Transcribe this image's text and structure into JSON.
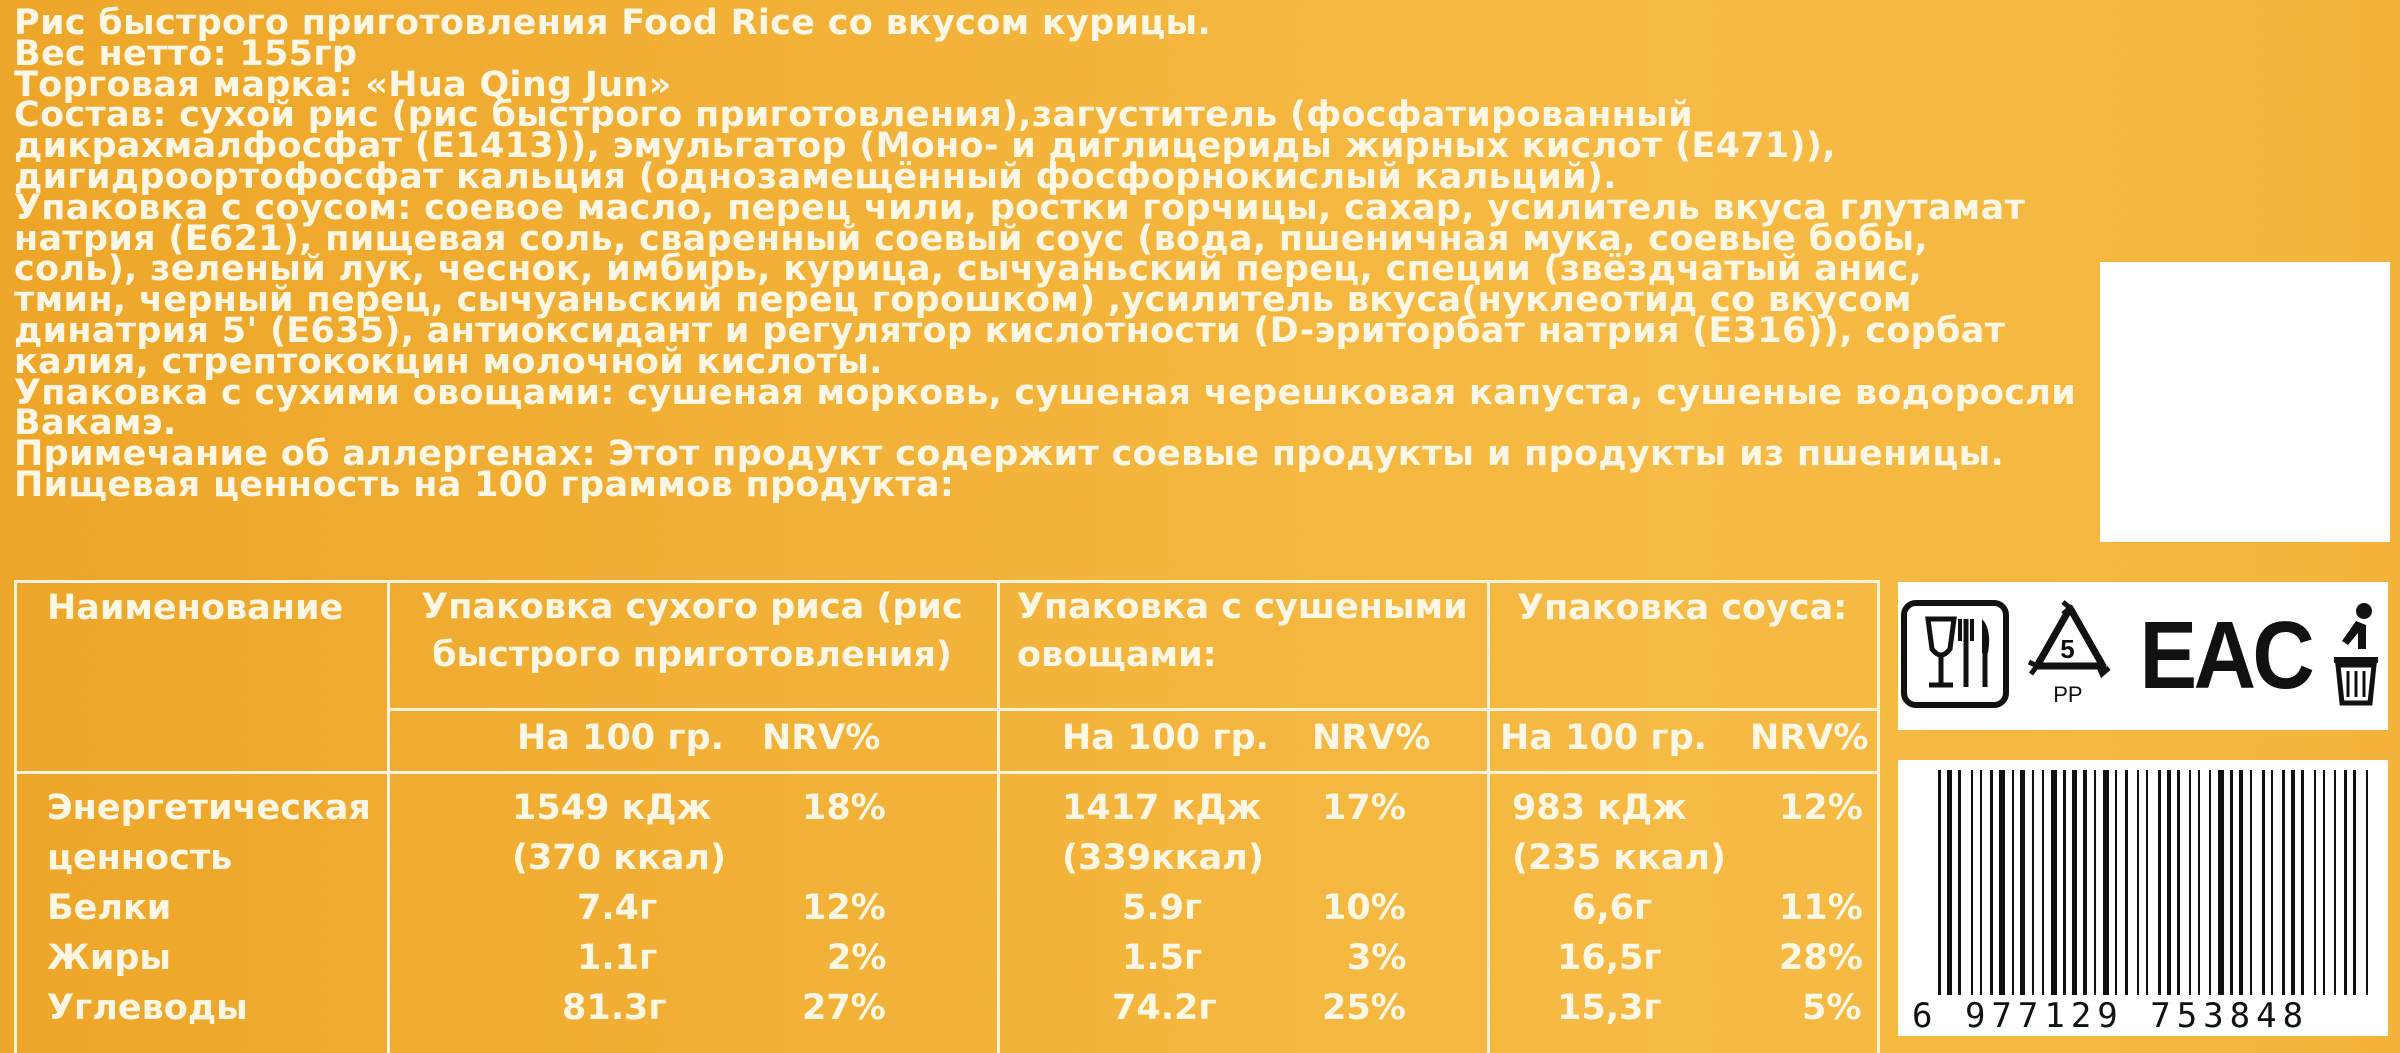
{
  "label": {
    "title": "Рис быстрого приготовления Food Rice со вкусом курицы.",
    "weight": "Вес нетто: 155гр",
    "brand": "Торговая марка: «Hua Qing Jun»",
    "composition": "Состав: сухой рис (рис быстрого приготовления),загуститель (фосфатированный дикрахмалфосфат (E1413)), эмульгатор (Моно- и диглицериды жирных кислот (E471)), дигидроортофосфат кальция (однозамещённый фосфорнокислый кальций).",
    "sauce": "Упаковка с соусом: соевое масло, перец чили, ростки горчицы, сахар, усилитель вкуса глутамат натрия (E621), пищевая соль, сваренный соевый соус (вода, пшеничная мука, соевые бобы, соль), зеленый лук, чеснок, имбирь, курица, сычуаньский перец, специи (звёздчатый анис, тмин, черный перец, сычуаньский перец горошком) ,усилитель вкуса(нуклеотид со вкусом динатрия 5' (E635), антиоксидант и регулятор кислотности (D-эриторбат натрия (E316)), сорбат калия, стрептококцин молочной кислоты.",
    "vegetables": "Упаковка с сухими овощами: сушеная морковь, сушеная черешковая капуста, сушеные водоросли Вакамэ.",
    "allergens": "Примечание об аллергенах: Этот продукт содержит соевые продукты и продукты из пшеницы.",
    "nutrition_heading": "Пищевая ценность на 100 граммов продукта:"
  },
  "table": {
    "col_name": "Наименование",
    "col_rice": "Упаковка сухого риса (рис быстрого приготовления)",
    "col_veg": "Упаковка с сушеными овощами:",
    "col_sauce": "Упаковка соуса:",
    "per100": "На 100 гр.",
    "nrv": "NRV%",
    "rows": [
      {
        "name": "Энергетическая ценность",
        "rice": "1549 кДж (370 ккал)",
        "rice_nrv": "18%",
        "veg": "1417 кДж (339ккал)",
        "veg_nrv": "17%",
        "sauce": "983 кДж (235 ккал)",
        "sauce_nrv": "12%"
      },
      {
        "name": "Белки",
        "rice": "7.4г",
        "rice_nrv": "12%",
        "veg": "5.9г",
        "veg_nrv": "10%",
        "sauce": "6,6г",
        "sauce_nrv": "11%"
      },
      {
        "name": "Жиры",
        "rice": "1.1г",
        "rice_nrv": "2%",
        "veg": "1.5г",
        "veg_nrv": "3%",
        "sauce": "16,5г",
        "sauce_nrv": "28%"
      },
      {
        "name": "Углеводы",
        "rice": "81.3г",
        "rice_nrv": "27%",
        "veg": "74.2г",
        "veg_nrv": "25%",
        "sauce": "15,3г",
        "sauce_nrv": "5%"
      }
    ]
  },
  "marks": {
    "recycle_number": "5",
    "recycle_material": "PP",
    "eac": "EAC"
  },
  "barcode": "6 977129 753848",
  "colors": {
    "background": "#f3b33a",
    "text": "#fff7e6"
  }
}
